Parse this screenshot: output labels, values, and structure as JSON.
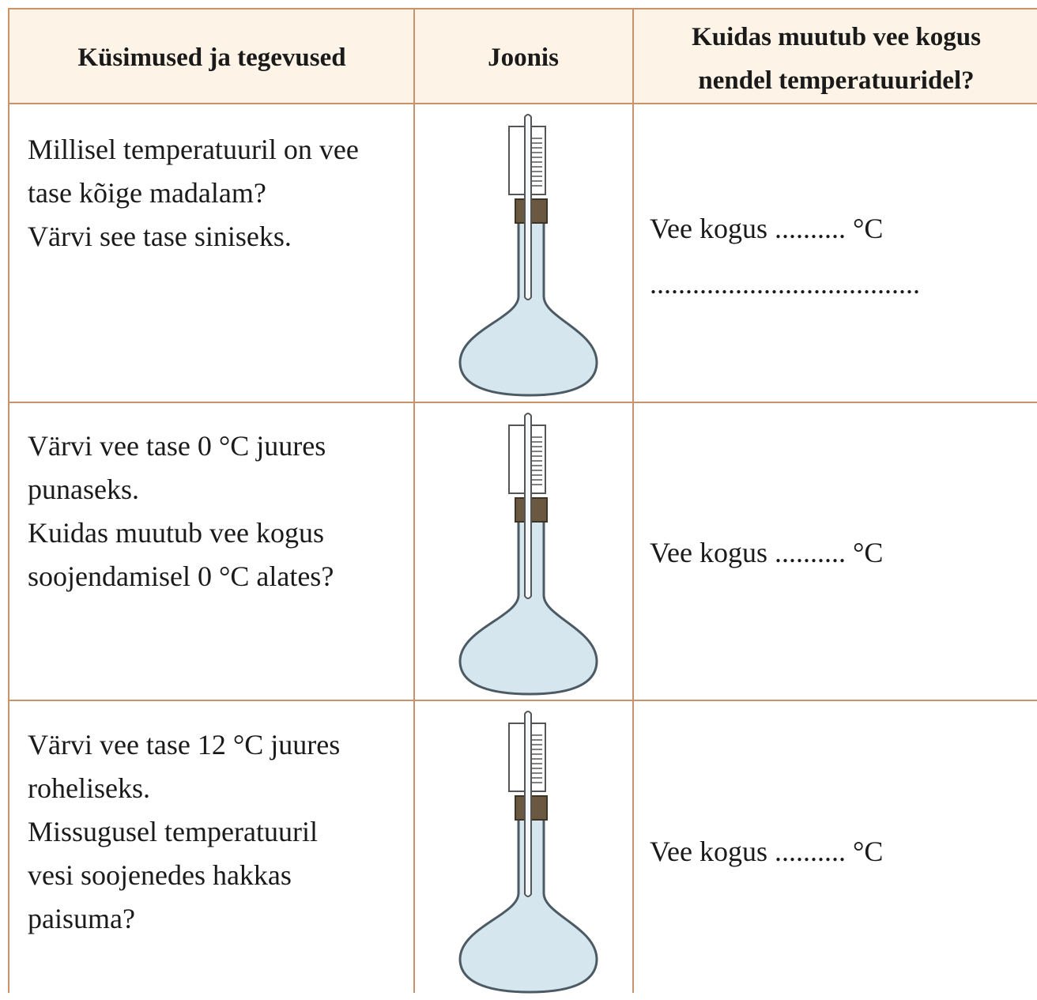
{
  "table": {
    "header": [
      "Küsimused ja tegevused",
      "Joonis",
      [
        "Kuidas muutub vee kogus",
        "nendel temperatuuridel?"
      ]
    ],
    "rows": [
      {
        "question": [
          "Millisel temperatuuril on vee",
          "tase kõige madalam?",
          "Värvi see tase siniseks."
        ],
        "answer": [
          "Vee kogus .......... °C",
          "......................................"
        ]
      },
      {
        "question": [
          "Värvi vee tase 0 °C juures",
          "punaseks.",
          "Kuidas muutub vee kogus",
          "soojendamisel 0 °C alates?"
        ],
        "answer": [
          "Vee kogus .......... °C"
        ]
      },
      {
        "question": [
          "Värvi vee tase 12 °C juures",
          "roheliseks.",
          "Missugusel temperatuuril",
          "vesi soojenedes hakkas",
          "paisuma?"
        ],
        "answer": [
          "Vee kogus .......... °C"
        ]
      }
    ]
  }
}
